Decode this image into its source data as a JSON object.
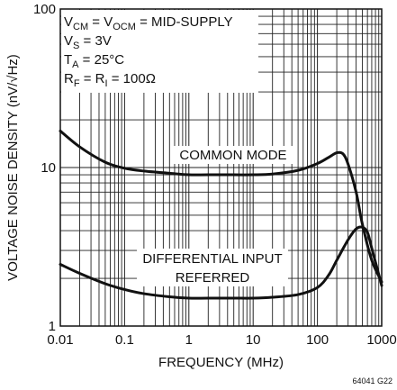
{
  "chart_data": {
    "type": "line",
    "xlabel": "FREQUENCY (MHz)",
    "ylabel": "VOLTAGE NOISE DENSITY (nV/√Hz)",
    "x_scale": "log",
    "y_scale": "log",
    "xlim": [
      0.01,
      1000
    ],
    "ylim": [
      1,
      100
    ],
    "x_ticks": [
      0.01,
      0.1,
      1,
      10,
      100,
      1000
    ],
    "x_tick_labels": [
      "0.01",
      "0.1",
      "1",
      "10",
      "100",
      "1000"
    ],
    "y_ticks": [
      1,
      10,
      100
    ],
    "y_tick_labels": [
      "1",
      "10",
      "100"
    ],
    "grid": true,
    "series": [
      {
        "name": "COMMON MODE",
        "x": [
          0.01,
          0.02,
          0.05,
          0.1,
          0.2,
          0.5,
          1,
          2,
          5,
          10,
          20,
          50,
          100,
          150,
          200,
          250,
          300,
          400,
          500,
          700,
          1000
        ],
        "y": [
          17,
          13.5,
          10.8,
          9.9,
          9.5,
          9.2,
          9.0,
          9.0,
          9.0,
          9.0,
          9.1,
          9.6,
          10.6,
          11.6,
          12.4,
          12.2,
          10.5,
          7.0,
          4.4,
          2.6,
          1.9
        ]
      },
      {
        "name": "DIFFERENTIAL INPUT REFERRED",
        "x": [
          0.01,
          0.02,
          0.05,
          0.1,
          0.2,
          0.5,
          1,
          2,
          5,
          10,
          20,
          50,
          100,
          150,
          200,
          300,
          400,
          500,
          600,
          700,
          1000
        ],
        "y": [
          2.45,
          2.15,
          1.85,
          1.7,
          1.6,
          1.53,
          1.5,
          1.5,
          1.5,
          1.5,
          1.52,
          1.58,
          1.75,
          2.1,
          2.6,
          3.5,
          4.1,
          4.2,
          3.9,
          3.1,
          1.8
        ]
      }
    ],
    "annotations": {
      "common_mode_label": "COMMON MODE",
      "diff_label_line1": "DIFFERENTIAL INPUT",
      "diff_label_line2": "REFERRED"
    },
    "conditions": {
      "line1_a": "V",
      "line1_a_sub": "CM",
      "line1_b": " = V",
      "line1_b_sub": "OCM",
      "line1_c": " = MID-SUPPLY",
      "line2_a": "V",
      "line2_a_sub": "S",
      "line2_b": " = 3V",
      "line3_a": "T",
      "line3_a_sub": "A",
      "line3_b": " = 25°C",
      "line4_a": "R",
      "line4_a_sub": "F",
      "line4_b": " = R",
      "line4_b_sub": "I",
      "line4_c": " = 100Ω"
    },
    "figure_id": "64041 G22"
  }
}
